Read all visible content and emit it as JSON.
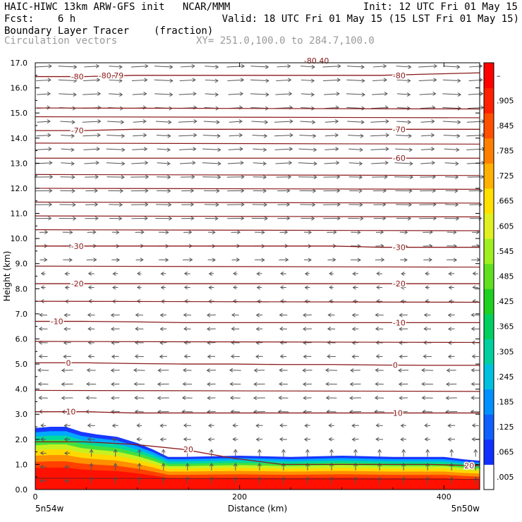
{
  "header": {
    "line1_left": "HAIC-HIWC 13km ARW-GFS init   NCAR/MMM",
    "line1_right": "Init: 12 UTC Fri 01 May 15",
    "line2_left": "Fcst:    6 h",
    "line2_right": "Valid: 18 UTC Fri 01 May 15 (15 LST Fri 01 May 15)",
    "line3_left": "Boundary Layer Tracer",
    "line3_unit": "(fraction)",
    "line4_left": "Circulation vectors",
    "line4_xy": "XY= 251.0,100.0 to 284.7,100.0"
  },
  "chart_data": {
    "type": "heatmap",
    "xlabel": "Distance (km)",
    "ylabel": "Height (km)",
    "xlim": [
      0,
      435
    ],
    "ylim": [
      0,
      17
    ],
    "x_ticks": [
      "0",
      "200",
      "400"
    ],
    "y_ticks": [
      "0.0",
      "1.0",
      "2.0",
      "3.0",
      "4.0",
      "5.0",
      "6.0",
      "7.0",
      "8.0",
      "9.0",
      "10.0",
      "11.0",
      "12.0",
      "13.0",
      "14.0",
      "15.0",
      "16.0",
      "17.0"
    ],
    "x_start_label": "5n54w",
    "x_end_label": "5n50w",
    "colorbar": {
      "labels": [
        ".005",
        ".065",
        ".125",
        ".185",
        ".245",
        ".305",
        ".365",
        ".425",
        ".485",
        ".545",
        ".605",
        ".665",
        ".725",
        ".785",
        ".845",
        ".905",
        "–"
      ],
      "colors": [
        "#ffffff",
        "#1030ff",
        "#1060ff",
        "#0090ff",
        "#00c0e0",
        "#00d0a0",
        "#00d060",
        "#20d020",
        "#60e020",
        "#a0f020",
        "#e0f020",
        "#ffe000",
        "#ffb000",
        "#ff8000",
        "#ff5000",
        "#ff2000",
        "#ff0000"
      ]
    },
    "tracer_top_km": [
      [
        0,
        2.45
      ],
      [
        15,
        2.5
      ],
      [
        30,
        2.5
      ],
      [
        45,
        2.3
      ],
      [
        60,
        2.2
      ],
      [
        80,
        2.1
      ],
      [
        100,
        1.85
      ],
      [
        115,
        1.6
      ],
      [
        130,
        1.3
      ],
      [
        145,
        1.3
      ],
      [
        200,
        1.35
      ],
      [
        250,
        1.3
      ],
      [
        300,
        1.35
      ],
      [
        350,
        1.3
      ],
      [
        400,
        1.3
      ],
      [
        420,
        1.2
      ],
      [
        435,
        1.15
      ]
    ],
    "isotherms": [
      {
        "label": "20",
        "y": [
          1.9,
          1.9,
          1.8,
          1.6,
          1.25,
          1.0,
          1.0,
          1.0,
          1.0,
          0.95
        ],
        "label_x": [
          145,
          420
        ]
      },
      {
        "label": "10",
        "y": [
          3.1,
          3.1,
          3.05,
          3.05,
          3.05,
          3.05,
          3.05,
          3.05,
          3.05,
          3.05
        ],
        "label_x": [
          30,
          350
        ]
      },
      {
        "label": "0",
        "y": [
          5.05,
          5.05,
          5.02,
          5.0,
          5.0,
          4.98,
          4.98,
          4.96,
          4.95,
          4.95
        ],
        "label_x": [
          30,
          350
        ]
      },
      {
        "label": "-10",
        "y": [
          6.7,
          6.7,
          6.68,
          6.65,
          6.65,
          6.65,
          6.65,
          6.65,
          6.65,
          6.65
        ],
        "label_x": [
          15,
          350
        ]
      },
      {
        "label": "-20",
        "y": [
          8.2,
          8.2,
          8.2,
          8.2,
          8.2,
          8.2,
          8.2,
          8.2,
          8.2,
          8.2
        ],
        "label_x": [
          35,
          350
        ]
      },
      {
        "label": "-30",
        "y": [
          9.7,
          9.7,
          9.7,
          9.7,
          9.7,
          9.7,
          9.7,
          9.65,
          9.65,
          9.65
        ],
        "label_x": [
          35,
          350
        ]
      },
      {
        "label": "-60",
        "y": [
          13.2,
          13.2,
          13.2,
          13.2,
          13.2,
          13.2,
          13.2,
          13.2,
          13.2,
          13.2
        ],
        "label_x": [
          350,
          350
        ]
      },
      {
        "label": "-70",
        "y": [
          14.3,
          14.3,
          14.35,
          14.35,
          14.35,
          14.35,
          14.35,
          14.35,
          14.35,
          14.35
        ],
        "label_x": [
          35,
          350
        ]
      },
      {
        "label": "-80",
        "y": [
          16.45,
          16.45,
          16.5,
          16.5,
          16.5,
          16.5,
          16.5,
          16.5,
          16.55,
          16.6
        ],
        "label_x": [
          35,
          350
        ]
      }
    ],
    "other_contours_km": [
      0.45,
      3.95,
      5.9,
      7.5,
      8.9,
      10.35,
      10.9,
      11.45,
      12.0,
      12.55,
      13.8,
      14.85,
      15.2
    ],
    "annotations": [
      "-80.79",
      "-80.40"
    ]
  }
}
